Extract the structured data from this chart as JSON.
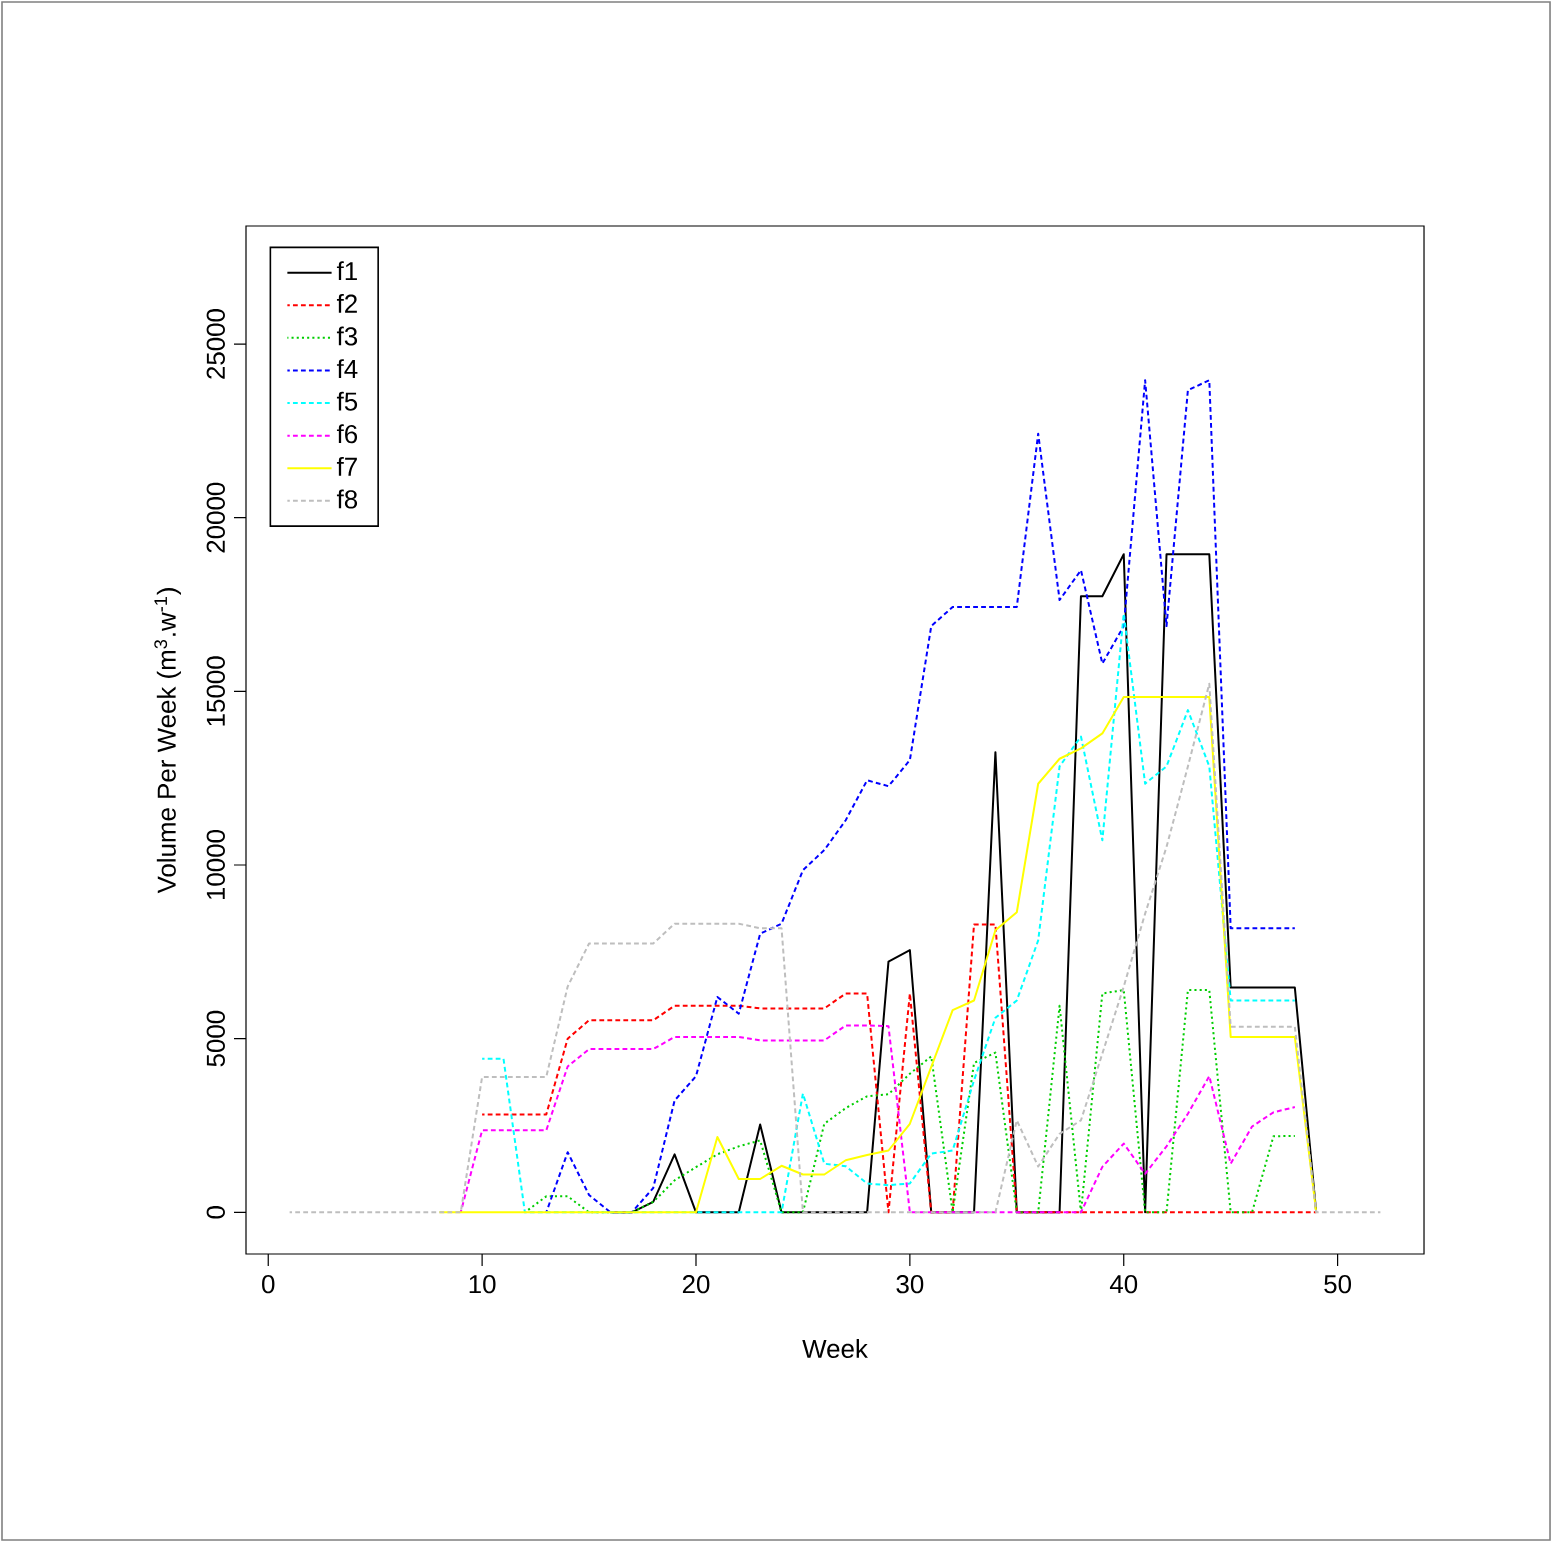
{
  "chart_data": {
    "type": "line",
    "xlabel": "Week",
    "ylabel": "Volume Per Week (m$^{3}$.w$^{-1}$)",
    "x": [
      1,
      2,
      3,
      4,
      5,
      6,
      7,
      8,
      9,
      10,
      11,
      12,
      13,
      14,
      15,
      16,
      17,
      18,
      19,
      20,
      21,
      22,
      23,
      24,
      25,
      26,
      27,
      28,
      29,
      30,
      31,
      32,
      33,
      34,
      35,
      36,
      37,
      38,
      39,
      40,
      41,
      42,
      43,
      44,
      45,
      46,
      47,
      48,
      49,
      50,
      51,
      52
    ],
    "xlim": [
      -1.04,
      54.04
    ],
    "ylim": [
      -1200,
      28400
    ],
    "xticks": [
      0,
      10,
      20,
      30,
      40,
      50
    ],
    "yticks": [
      0,
      5000,
      10000,
      15000,
      20000,
      25000
    ],
    "legend": "top left",
    "grid": false,
    "marker": "none",
    "series": [
      {
        "name": "f1",
        "color": "#000000",
        "line_style": "solid",
        "values": [
          null,
          null,
          null,
          null,
          null,
          null,
          null,
          null,
          null,
          null,
          null,
          null,
          null,
          null,
          null,
          0,
          0,
          300,
          1670,
          0,
          0,
          0,
          2530,
          0,
          0,
          0,
          0,
          0,
          7220,
          7550,
          0,
          0,
          0,
          13250,
          0,
          0,
          0,
          17740,
          17740,
          18950,
          0,
          18950,
          18950,
          18950,
          6470,
          6470,
          6470,
          6470,
          0,
          null,
          null,
          null
        ]
      },
      {
        "name": "f2",
        "color": "#ff0000",
        "line_style": "dashed",
        "values": [
          null,
          null,
          null,
          null,
          null,
          null,
          null,
          null,
          null,
          2820,
          2820,
          2820,
          2820,
          5000,
          5530,
          5530,
          5530,
          5530,
          5950,
          5950,
          5950,
          5950,
          5870,
          5870,
          5870,
          5870,
          6300,
          6300,
          0,
          6300,
          0,
          0,
          8290,
          8290,
          0,
          0,
          0,
          0,
          0,
          0,
          0,
          0,
          0,
          0,
          0,
          0,
          0,
          0,
          0,
          null,
          null,
          null
        ]
      },
      {
        "name": "f3",
        "color": "#00cd00",
        "line_style": "dotted",
        "values": [
          null,
          null,
          null,
          null,
          null,
          null,
          null,
          null,
          null,
          null,
          null,
          0,
          460,
          460,
          0,
          0,
          0,
          300,
          920,
          1300,
          1670,
          1900,
          2070,
          0,
          0,
          2550,
          3000,
          3340,
          3400,
          3990,
          4490,
          0,
          4300,
          4600,
          0,
          0,
          5950,
          0,
          6300,
          6400,
          0,
          0,
          6400,
          6400,
          0,
          0,
          2190,
          2200,
          null,
          null,
          null,
          null
        ]
      },
      {
        "name": "f4",
        "color": "#0000ff",
        "line_style": "dashed",
        "values": [
          null,
          null,
          null,
          null,
          null,
          null,
          null,
          null,
          null,
          null,
          null,
          null,
          0,
          1730,
          500,
          0,
          0,
          700,
          3220,
          3920,
          6200,
          5720,
          8020,
          8310,
          9850,
          10430,
          11290,
          12440,
          12270,
          13020,
          16880,
          17430,
          17430,
          17430,
          17430,
          22420,
          17630,
          18490,
          15800,
          16880,
          23960,
          16880,
          23670,
          23960,
          8180,
          8180,
          8180,
          8180,
          null,
          null,
          null,
          null
        ]
      },
      {
        "name": "f5",
        "color": "#00ffff",
        "line_style": "dashed",
        "values": [
          null,
          null,
          null,
          null,
          null,
          null,
          null,
          null,
          null,
          4420,
          4420,
          0,
          0,
          0,
          0,
          0,
          0,
          0,
          0,
          0,
          0,
          0,
          0,
          0,
          3420,
          1400,
          1330,
          830,
          780,
          830,
          1690,
          1780,
          3800,
          5600,
          6100,
          7830,
          12840,
          13700,
          10710,
          17240,
          12340,
          12840,
          14460,
          12840,
          6100,
          6100,
          6100,
          6100,
          null,
          null,
          null,
          null
        ]
      },
      {
        "name": "f6",
        "color": "#ff00ff",
        "line_style": "dashed",
        "values": [
          null,
          null,
          null,
          null,
          null,
          null,
          null,
          null,
          0,
          2360,
          2360,
          2360,
          2360,
          4200,
          4700,
          4700,
          4700,
          4700,
          5050,
          5050,
          5050,
          5050,
          4950,
          4950,
          4950,
          4950,
          5380,
          5380,
          5360,
          0,
          0,
          0,
          0,
          0,
          0,
          0,
          0,
          0,
          1310,
          1980,
          1110,
          1900,
          2840,
          3920,
          1400,
          2470,
          2880,
          3030,
          null,
          null,
          null,
          null
        ]
      },
      {
        "name": "f7",
        "color": "#ffff00",
        "line_style": "solid",
        "values": [
          null,
          null,
          null,
          null,
          null,
          null,
          null,
          0,
          0,
          0,
          0,
          0,
          0,
          0,
          0,
          0,
          0,
          0,
          0,
          0,
          2170,
          960,
          960,
          1340,
          1090,
          1090,
          1500,
          1650,
          1780,
          2550,
          4190,
          5820,
          6100,
          8120,
          8640,
          12340,
          13060,
          13360,
          13790,
          14840,
          14840,
          14840,
          14840,
          14840,
          5050,
          5050,
          5050,
          5050,
          0,
          null,
          null,
          null
        ]
      },
      {
        "name": "f8",
        "color": "#bebebe",
        "line_style": "dashed",
        "values": [
          0,
          0,
          0,
          0,
          0,
          0,
          0,
          0,
          0,
          3900,
          3900,
          3900,
          3900,
          6500,
          7740,
          7740,
          7740,
          7740,
          8310,
          8310,
          8310,
          8310,
          8180,
          8180,
          0,
          0,
          0,
          0,
          0,
          0,
          0,
          0,
          0,
          0,
          2650,
          1320,
          2260,
          2650,
          4570,
          6500,
          8600,
          10520,
          12840,
          15220,
          5340,
          5340,
          5340,
          5340,
          0,
          0,
          0,
          0
        ]
      }
    ]
  }
}
